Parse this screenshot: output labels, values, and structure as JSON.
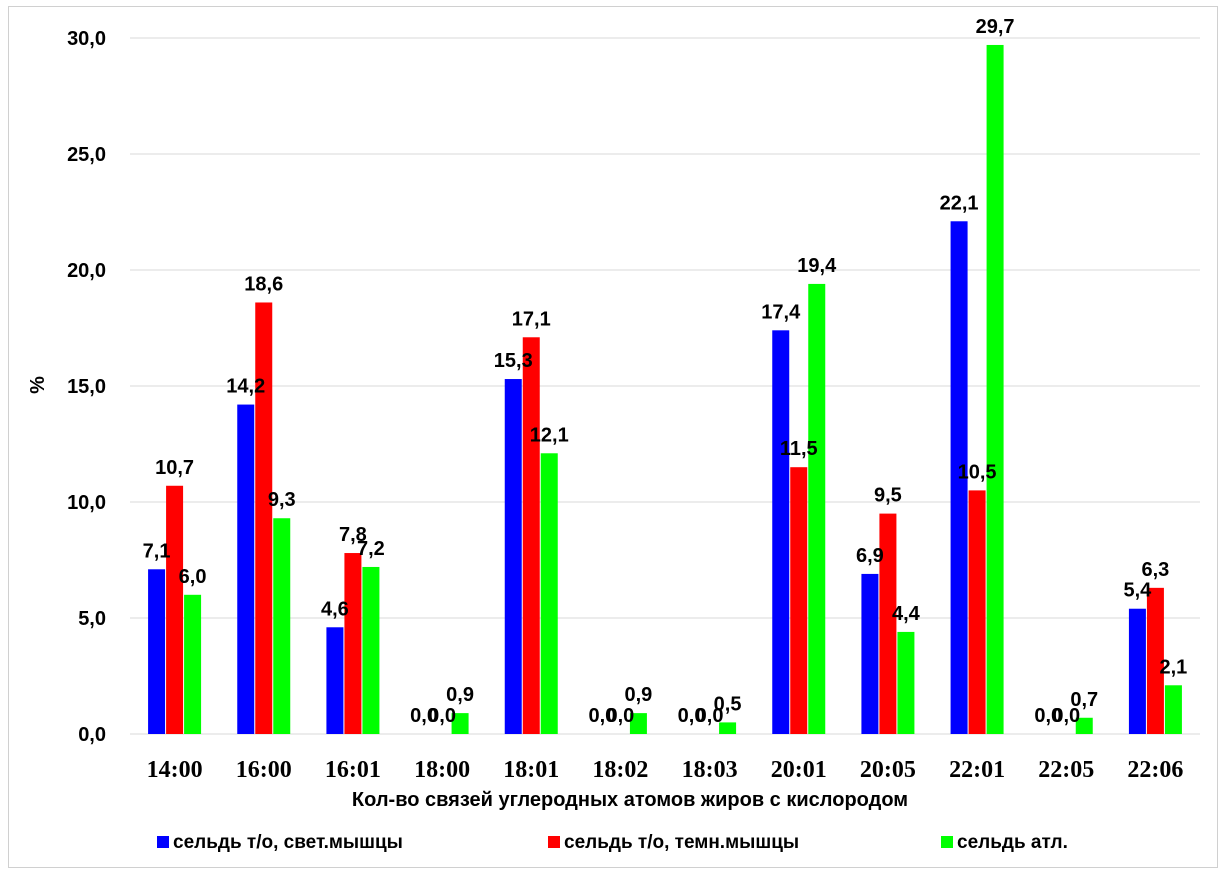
{
  "chart_data": {
    "type": "bar",
    "title": "",
    "xlabel": "Кол-во связей углеродных атомов жиров с кислородом",
    "ylabel": "%",
    "ylim": [
      0,
      30
    ],
    "yticks": [
      "0,0",
      "5,0",
      "10,0",
      "15,0",
      "20,0",
      "25,0",
      "30,0"
    ],
    "grid": true,
    "legend_position": "bottom",
    "categories": [
      "14:00",
      "16:00",
      "16:01",
      "18:00",
      "18:01",
      "18:02",
      "18:03",
      "20:01",
      "20:05",
      "22:01",
      "22:05",
      "22:06"
    ],
    "series": [
      {
        "name": "сельдь т/о, свет.мышцы",
        "color": "#0000ff",
        "values": [
          7.1,
          14.2,
          4.6,
          0.0,
          15.3,
          0.0,
          0.0,
          17.4,
          6.9,
          22.1,
          0.0,
          5.4
        ],
        "labels": [
          "7,1",
          "14,2",
          "4,6",
          "0,0",
          "15,3",
          "0,0",
          "0,0",
          "17,4",
          "6,9",
          "22,1",
          "0,0",
          "5,4"
        ]
      },
      {
        "name": "сельдь т/о, темн.мышцы",
        "color": "#ff0000",
        "values": [
          10.7,
          18.6,
          7.8,
          0.0,
          17.1,
          0.0,
          0.0,
          11.5,
          9.5,
          10.5,
          0.0,
          6.3
        ],
        "labels": [
          "10,7",
          "18,6",
          "7,8",
          "0,0",
          "17,1",
          "0,0",
          "0,0",
          "11,5",
          "9,5",
          "10,5",
          "0,0",
          "6,3"
        ]
      },
      {
        "name": "сельдь атл.",
        "color": "#00ff00",
        "values": [
          6.0,
          9.3,
          7.2,
          0.9,
          12.1,
          0.9,
          0.5,
          19.4,
          4.4,
          29.7,
          0.7,
          2.1
        ],
        "labels": [
          "6,0",
          "9,3",
          "7,2",
          "0,9",
          "12,1",
          "0,9",
          "0,5",
          "19,4",
          "4,4",
          "29,7",
          "0,7",
          "2,1"
        ]
      }
    ]
  }
}
